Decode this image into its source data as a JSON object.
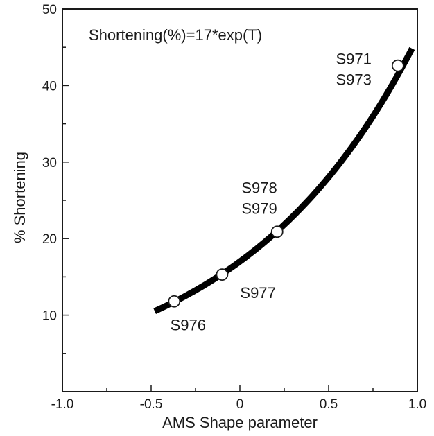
{
  "chart_data": {
    "type": "line",
    "title": "",
    "equation": "Shortening(%)=17*exp(T)",
    "xlabel": "AMS Shape parameter",
    "ylabel": "% Shortening",
    "xlim": [
      -1.0,
      1.0
    ],
    "ylim": [
      0,
      50
    ],
    "x_ticks": [
      -1.0,
      -0.5,
      0,
      0.5,
      1.0
    ],
    "x_tick_labels": [
      "-1.0",
      "-0.5",
      "0",
      "0.5",
      "1.0"
    ],
    "y_ticks": [
      10,
      20,
      30,
      40,
      50
    ],
    "y_tick_labels": [
      "10",
      "20",
      "30",
      "40",
      "50"
    ],
    "grid": false,
    "legend": "none",
    "curve": {
      "model": "17*exp(T)",
      "x_start": -0.48,
      "x_end": 0.97,
      "color": "#000000"
    },
    "points": [
      {
        "x": -0.37,
        "y": 11.8
      },
      {
        "x": -0.1,
        "y": 15.3
      },
      {
        "x": 0.21,
        "y": 20.9
      },
      {
        "x": 0.89,
        "y": 42.6
      }
    ],
    "point_labels": [
      {
        "lines": [
          "S976"
        ],
        "x": -0.37,
        "y": 11.8,
        "placement": "below"
      },
      {
        "lines": [
          "S977"
        ],
        "x": -0.1,
        "y": 15.3,
        "placement": "below-right"
      },
      {
        "lines": [
          "S978",
          "S979"
        ],
        "x": 0.21,
        "y": 20.9,
        "placement": "above-left"
      },
      {
        "lines": [
          "S971",
          "S973"
        ],
        "x": 0.89,
        "y": 42.6,
        "placement": "left"
      }
    ]
  }
}
